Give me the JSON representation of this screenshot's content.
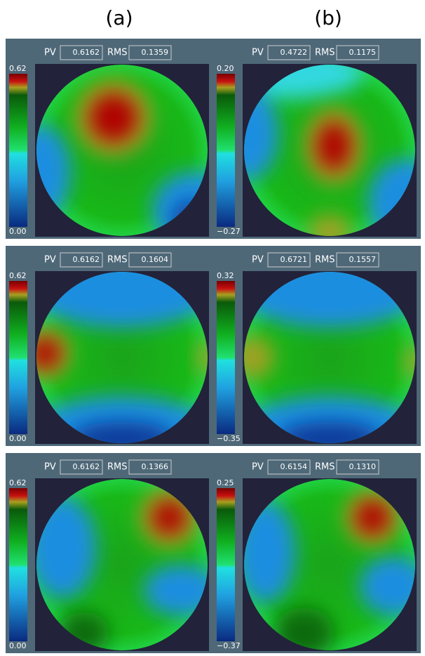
{
  "columns": [
    "(a)",
    "(b)"
  ],
  "panels": [
    {
      "pv_label": "PV",
      "pv": "0.6162",
      "rms_label": "RMS",
      "rms": "0.1359",
      "scale_max": "0.62",
      "scale_min": "0.00"
    },
    {
      "pv_label": "PV",
      "pv": "0.4722",
      "rms_label": "RMS",
      "rms": "0.1175",
      "scale_max": "0.20",
      "scale_min": "−0.27"
    },
    {
      "pv_label": "PV",
      "pv": "0.6162",
      "rms_label": "RMS",
      "rms": "0.1604",
      "scale_max": "0.62",
      "scale_min": "0.00"
    },
    {
      "pv_label": "PV",
      "pv": "0.6721",
      "rms_label": "RMS",
      "rms": "0.1557",
      "scale_max": "0.32",
      "scale_min": "−0.35"
    },
    {
      "pv_label": "PV",
      "pv": "0.6162",
      "rms_label": "RMS",
      "rms": "0.1366",
      "scale_max": "0.62",
      "scale_min": "0.00"
    },
    {
      "pv_label": "PV",
      "pv": "0.6154",
      "rms_label": "RMS",
      "rms": "0.1310",
      "scale_max": "0.25",
      "scale_min": "−0.37"
    }
  ]
}
